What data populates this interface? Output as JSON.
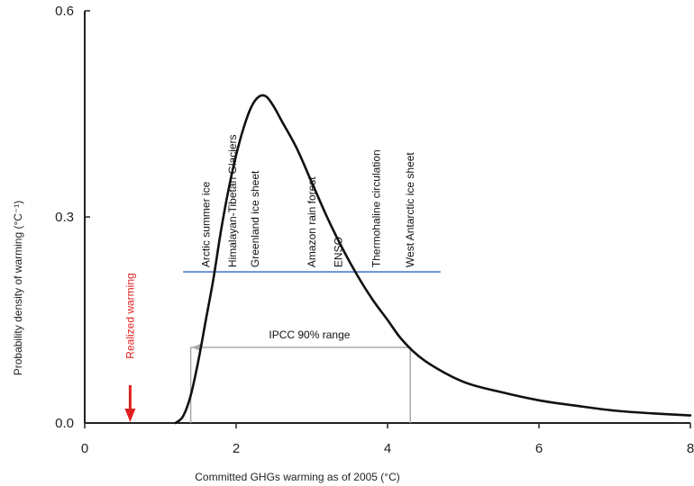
{
  "chart_data": {
    "type": "line",
    "title": "",
    "xlabel": "Committed GHGs warming as of 2005 (°C)",
    "ylabel": "Probability density of warming (°C⁻¹)",
    "xlim": [
      0,
      8
    ],
    "ylim": [
      0,
      0.6
    ],
    "x_ticks": [
      0,
      2,
      4,
      6,
      8
    ],
    "x_tick_labels": [
      "0",
      "2",
      "4",
      "6",
      "8"
    ],
    "y_ticks": [
      0.0,
      0.3,
      0.6
    ],
    "y_tick_labels": [
      "0.0",
      "0.3",
      "0.6"
    ],
    "grid": false,
    "series": [
      {
        "values_x": [
          1.2,
          1.3,
          1.4,
          1.5,
          1.6,
          1.7,
          1.8,
          1.9,
          2.0,
          2.1,
          2.2,
          2.3,
          2.4,
          2.5,
          2.6,
          2.8,
          3.0,
          3.2,
          3.4,
          3.6,
          3.8,
          4.0,
          4.2,
          4.5,
          5.0,
          5.5,
          6.0,
          6.5,
          7.0,
          7.5,
          8.0
        ],
        "values_y": [
          0.0,
          0.01,
          0.04,
          0.09,
          0.15,
          0.21,
          0.28,
          0.34,
          0.39,
          0.43,
          0.46,
          0.475,
          0.475,
          0.46,
          0.44,
          0.4,
          0.35,
          0.3,
          0.255,
          0.215,
          0.18,
          0.15,
          0.12,
          0.09,
          0.06,
          0.045,
          0.033,
          0.025,
          0.018,
          0.014,
          0.011
        ]
      }
    ],
    "threshold_line": {
      "x_start": 1.3,
      "x_end": 4.7,
      "y": 0.22
    },
    "ipcc_range": {
      "label": "IPCC 90% range",
      "x_start": 1.4,
      "x_end": 4.3,
      "y": 0.11
    },
    "realized_warming": {
      "label": "Realized warming",
      "x": 0.6
    },
    "tipping_points": [
      {
        "label": "Arctic summer ice",
        "x": 1.6
      },
      {
        "label": "Himalayan-Tibetan Glaciers",
        "x": 1.95
      },
      {
        "label": "Greenland ice sheet",
        "x": 2.25
      },
      {
        "label": "Amazon rain forest",
        "x": 3.0
      },
      {
        "label": "ENSO",
        "x": 3.35
      },
      {
        "label": "Thermohaline circulation",
        "x": 3.85
      },
      {
        "label": "West Antarctic ice sheet",
        "x": 4.3
      }
    ],
    "colors": {
      "curve": "#111111",
      "threshold": "#6a8fd8",
      "ipcc": "#a9a9a9",
      "realized": "#e02020",
      "axis": "#222222"
    }
  }
}
